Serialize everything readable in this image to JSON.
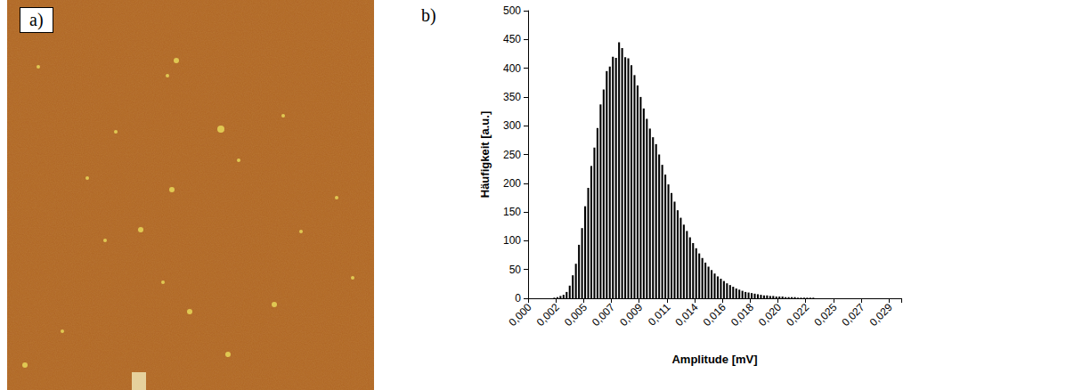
{
  "panel_a": {
    "label": "a)"
  },
  "chart_data": {
    "type": "bar",
    "panel_label": "b)",
    "x_label": "Amplitude [mV]",
    "y_label": "Häufigkeit [a.u.]",
    "categories": [
      "0,000",
      null,
      null,
      null,
      null,
      null,
      null,
      null,
      null,
      "0,002",
      null,
      null,
      null,
      null,
      null,
      null,
      null,
      null,
      "0,005",
      null,
      null,
      null,
      null,
      null,
      null,
      null,
      null,
      "0,007",
      null,
      null,
      null,
      null,
      null,
      null,
      null,
      null,
      "0,009",
      null,
      null,
      null,
      null,
      null,
      null,
      null,
      null,
      "0,011",
      null,
      null,
      null,
      null,
      null,
      null,
      null,
      null,
      "0,014",
      null,
      null,
      null,
      null,
      null,
      null,
      null,
      null,
      "0,016",
      null,
      null,
      null,
      null,
      null,
      null,
      null,
      null,
      "0,018",
      null,
      null,
      null,
      null,
      null,
      null,
      null,
      null,
      "0,020",
      null,
      null,
      null,
      null,
      null,
      null,
      null,
      null,
      "0,022",
      null,
      null,
      null,
      null,
      null,
      null,
      null,
      null,
      "0,025",
      null,
      null,
      null,
      null,
      null,
      null,
      null,
      null,
      "0,027",
      null,
      null,
      null,
      null,
      null,
      null,
      null,
      null,
      "0,029",
      null,
      null,
      null
    ],
    "values": [
      0,
      0,
      0,
      0,
      0,
      0,
      0,
      0,
      1,
      2,
      4,
      6,
      11,
      22,
      40,
      60,
      93,
      122,
      160,
      192,
      230,
      262,
      296,
      337,
      363,
      395,
      403,
      420,
      418,
      445,
      435,
      419,
      417,
      405,
      388,
      370,
      350,
      330,
      312,
      295,
      280,
      268,
      250,
      232,
      215,
      198,
      183,
      168,
      153,
      140,
      128,
      117,
      106,
      96,
      87,
      78,
      70,
      62,
      55,
      49,
      43,
      38,
      34,
      30,
      26,
      23,
      20,
      17,
      15,
      13,
      11,
      10,
      9,
      8,
      7,
      6,
      5,
      5,
      4,
      4,
      3,
      3,
      3,
      2,
      2,
      2,
      2,
      1,
      1,
      1,
      1,
      1,
      1,
      0,
      0,
      0,
      0,
      0,
      0,
      0,
      0,
      0,
      0,
      0,
      0,
      0,
      0,
      0,
      0,
      0,
      0,
      0,
      0,
      0,
      0,
      0,
      0,
      0,
      0,
      0,
      0
    ],
    "color": "#000000",
    "ylim": [
      0,
      500
    ],
    "yticks": [
      0,
      50,
      100,
      150,
      200,
      250,
      300,
      350,
      400,
      450,
      500
    ],
    "grid": false
  }
}
